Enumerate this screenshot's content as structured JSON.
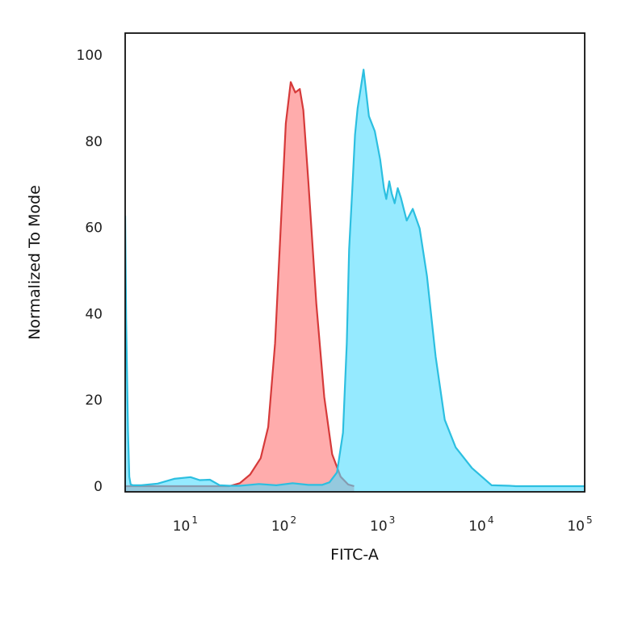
{
  "chart_data": {
    "type": "area",
    "title": "",
    "xlabel": "FITC-A",
    "ylabel": "Normalized To Mode",
    "xscale": "log",
    "xlim": [
      2.2,
      100000
    ],
    "ylim": [
      0,
      100
    ],
    "grid": false,
    "legend": "none",
    "x_ticks": [
      {
        "base": "10",
        "exp": "1",
        "value": 10
      },
      {
        "base": "10",
        "exp": "2",
        "value": 100
      },
      {
        "base": "10",
        "exp": "3",
        "value": 1000
      },
      {
        "base": "10",
        "exp": "4",
        "value": 10000
      },
      {
        "base": "10",
        "exp": "5",
        "value": 100000
      }
    ],
    "y_ticks": [
      {
        "label": "0",
        "value": 0
      },
      {
        "label": "20",
        "value": 20
      },
      {
        "label": "40",
        "value": 40
      },
      {
        "label": "60",
        "value": 60
      },
      {
        "label": "80",
        "value": 80
      },
      {
        "label": "100",
        "value": 100
      }
    ],
    "series": [
      {
        "key": "control",
        "stroke": "#d63a3a",
        "fill": "#ff8080",
        "fill_opacity": 0.65,
        "x": [
          2.2,
          25,
          31.9,
          40.6,
          52,
          62,
          72.7,
          83.8,
          93.5,
          104.8,
          116.5,
          129.4,
          140.7,
          158.4,
          190.6,
          229.3,
          275.8,
          335.7,
          400,
          460
        ],
        "y": [
          0,
          0,
          0.7,
          2.7,
          6.5,
          13.7,
          33.1,
          61.9,
          84.1,
          93.7,
          91.3,
          92.1,
          87.2,
          70.4,
          42.3,
          20.7,
          7.4,
          2.2,
          0.4,
          0
        ]
      },
      {
        "key": "sample",
        "stroke": "#2cbfe0",
        "fill": "#4fdcff",
        "fill_opacity": 0.6,
        "x": [
          2.2,
          2.25,
          2.35,
          2.42,
          2.5,
          2.65,
          3.2,
          4.7,
          6.9,
          10.1,
          12.5,
          15.9,
          20,
          25,
          32,
          50,
          75,
          109.4,
          158,
          217.7,
          259.2,
          308.6,
          355.1,
          387.5,
          409.9,
          441.2,
          470.1,
          499.2,
          526.8,
          573.5,
          650.2,
          746.4,
          844.4,
          923.1,
          973.7,
          1044.2,
          1106.4,
          1185.9,
          1274.4,
          1371.2,
          1464.3,
          1568.6,
          1809.7,
          2123.5,
          2519.9,
          3080.6,
          3812.6,
          4918.5,
          7203.4,
          11400,
          17300,
          20000,
          100000
        ],
        "y": [
          62.7,
          38.6,
          12.7,
          2.2,
          0.4,
          0.2,
          0.2,
          0.6,
          1.7,
          2.1,
          1.4,
          1.5,
          0.2,
          0.1,
          0.1,
          0.5,
          0.2,
          0.7,
          0.3,
          0.3,
          0.9,
          3.2,
          12.4,
          33.1,
          54.9,
          69.1,
          81.5,
          87.6,
          91.1,
          96.6,
          85.8,
          82.3,
          75.8,
          69.1,
          66.6,
          70.7,
          67.9,
          65.6,
          69.1,
          66.9,
          64.3,
          61.6,
          64.3,
          59.8,
          48.7,
          30.1,
          15.4,
          9.0,
          4.2,
          0.2,
          0.1,
          0,
          0
        ]
      }
    ]
  }
}
